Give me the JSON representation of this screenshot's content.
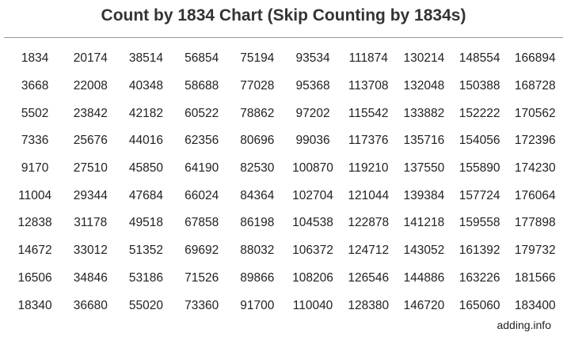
{
  "title": "Count by 1834 Chart (Skip Counting by 1834s)",
  "rows": [
    [
      "1834",
      "20174",
      "38514",
      "56854",
      "75194",
      "93534",
      "111874",
      "130214",
      "148554",
      "166894"
    ],
    [
      "3668",
      "22008",
      "40348",
      "58688",
      "77028",
      "95368",
      "113708",
      "132048",
      "150388",
      "168728"
    ],
    [
      "5502",
      "23842",
      "42182",
      "60522",
      "78862",
      "97202",
      "115542",
      "133882",
      "152222",
      "170562"
    ],
    [
      "7336",
      "25676",
      "44016",
      "62356",
      "80696",
      "99036",
      "117376",
      "135716",
      "154056",
      "172396"
    ],
    [
      "9170",
      "27510",
      "45850",
      "64190",
      "82530",
      "100870",
      "119210",
      "137550",
      "155890",
      "174230"
    ],
    [
      "11004",
      "29344",
      "47684",
      "66024",
      "84364",
      "102704",
      "121044",
      "139384",
      "157724",
      "176064"
    ],
    [
      "12838",
      "31178",
      "49518",
      "67858",
      "86198",
      "104538",
      "122878",
      "141218",
      "159558",
      "177898"
    ],
    [
      "14672",
      "33012",
      "51352",
      "69692",
      "88032",
      "106372",
      "124712",
      "143052",
      "161392",
      "179732"
    ],
    [
      "16506",
      "34846",
      "53186",
      "71526",
      "89866",
      "108206",
      "126546",
      "144886",
      "163226",
      "181566"
    ],
    [
      "18340",
      "36680",
      "55020",
      "73360",
      "91700",
      "110040",
      "128380",
      "146720",
      "165060",
      "183400"
    ]
  ],
  "footer": "adding.info"
}
